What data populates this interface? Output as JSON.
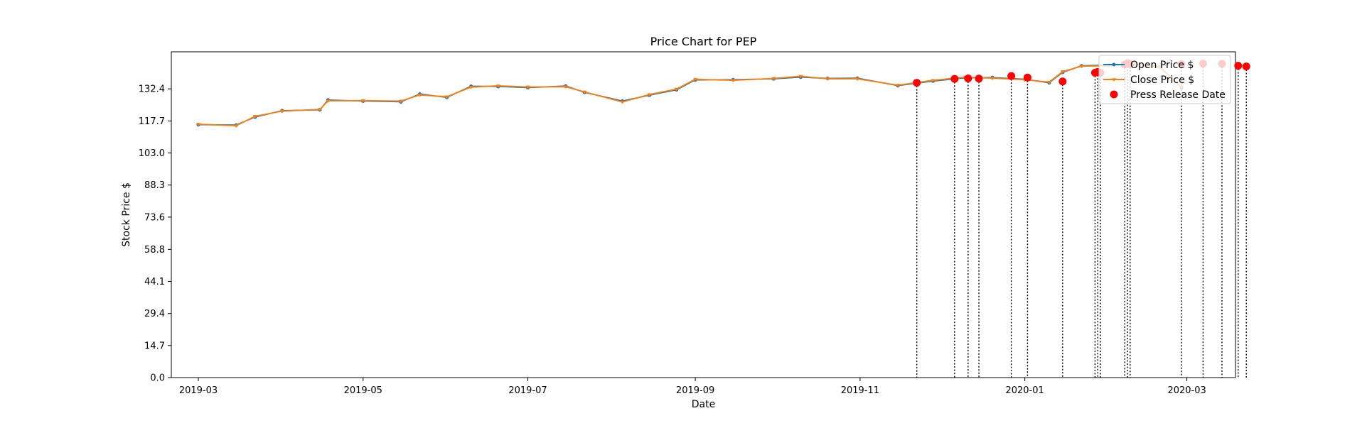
{
  "chart_data": {
    "type": "line",
    "title": "Price Chart for PEP",
    "xlabel": "Date",
    "ylabel": "Stock Price $",
    "xlim": [
      "2019-02-19",
      "2020-03-19"
    ],
    "ylim": [
      0,
      149.4
    ],
    "y_ticks": [
      "0.0",
      "14.7",
      "29.4",
      "44.1",
      "58.8",
      "73.6",
      "88.3",
      "103.0",
      "117.7",
      "132.4"
    ],
    "x_ticks": [
      {
        "date": "2019-03-01",
        "label": "2019-03"
      },
      {
        "date": "2019-05-01",
        "label": "2019-05"
      },
      {
        "date": "2019-07-01",
        "label": "2019-07"
      },
      {
        "date": "2019-09-01",
        "label": "2019-09"
      },
      {
        "date": "2019-11-01",
        "label": "2019-11"
      },
      {
        "date": "2020-01-01",
        "label": "2020-01"
      },
      {
        "date": "2020-03-01",
        "label": "2020-03"
      }
    ],
    "legend_position": "top-right",
    "colors": {
      "open": "#1f77b4",
      "close": "#ff7f0e",
      "press": "#ff0000"
    },
    "series": [
      {
        "name": "Open Price $",
        "points": [
          [
            "2019-03-01",
            116.0
          ],
          [
            "2019-03-15",
            115.8
          ],
          [
            "2019-03-22",
            119.5
          ],
          [
            "2019-04-01",
            122.4
          ],
          [
            "2019-04-15",
            122.8
          ],
          [
            "2019-04-18",
            127.3
          ],
          [
            "2019-05-01",
            126.8
          ],
          [
            "2019-05-15",
            126.5
          ],
          [
            "2019-05-22",
            130.0
          ],
          [
            "2019-06-01",
            128.5
          ],
          [
            "2019-06-10",
            133.6
          ],
          [
            "2019-06-20",
            133.5
          ],
          [
            "2019-07-01",
            133.0
          ],
          [
            "2019-07-15",
            133.7
          ],
          [
            "2019-07-22",
            130.8
          ],
          [
            "2019-08-05",
            126.8
          ],
          [
            "2019-08-15",
            129.5
          ],
          [
            "2019-08-25",
            132.0
          ],
          [
            "2019-09-01",
            136.5
          ],
          [
            "2019-09-15",
            136.6
          ],
          [
            "2019-09-30",
            137.0
          ],
          [
            "2019-10-10",
            137.8
          ],
          [
            "2019-10-20",
            137.2
          ],
          [
            "2019-10-31",
            137.3
          ],
          [
            "2019-11-15",
            133.9
          ],
          [
            "2019-11-28",
            136.0
          ],
          [
            "2019-12-10",
            137.5
          ],
          [
            "2019-12-20",
            137.6
          ],
          [
            "2020-01-01",
            136.8
          ],
          [
            "2020-01-10",
            135.2
          ],
          [
            "2020-01-15",
            140.0
          ],
          [
            "2020-01-22",
            143.0
          ],
          [
            "2020-02-01",
            143.3
          ],
          [
            "2020-02-10",
            143.8
          ],
          [
            "2020-02-20",
            142.6
          ],
          [
            "2020-02-28",
            133.0
          ]
        ]
      },
      {
        "name": "Close Price $",
        "points": [
          [
            "2019-03-01",
            116.2
          ],
          [
            "2019-03-15",
            115.5
          ],
          [
            "2019-03-22",
            119.8
          ],
          [
            "2019-04-01",
            122.2
          ],
          [
            "2019-04-15",
            123.0
          ],
          [
            "2019-04-18",
            126.9
          ],
          [
            "2019-05-01",
            127.0
          ],
          [
            "2019-05-15",
            126.8
          ],
          [
            "2019-05-22",
            129.6
          ],
          [
            "2019-06-01",
            128.8
          ],
          [
            "2019-06-10",
            133.2
          ],
          [
            "2019-06-20",
            133.8
          ],
          [
            "2019-07-01",
            133.3
          ],
          [
            "2019-07-15",
            133.4
          ],
          [
            "2019-07-22",
            131.0
          ],
          [
            "2019-08-05",
            126.4
          ],
          [
            "2019-08-15",
            129.8
          ],
          [
            "2019-08-25",
            132.3
          ],
          [
            "2019-09-01",
            136.8
          ],
          [
            "2019-09-15",
            136.3
          ],
          [
            "2019-09-30",
            137.2
          ],
          [
            "2019-10-10",
            138.2
          ],
          [
            "2019-10-20",
            137.0
          ],
          [
            "2019-10-31",
            137.0
          ],
          [
            "2019-11-15",
            134.1
          ],
          [
            "2019-11-28",
            136.3
          ],
          [
            "2019-12-10",
            137.8
          ],
          [
            "2019-12-20",
            137.3
          ],
          [
            "2020-01-01",
            136.6
          ],
          [
            "2020-01-10",
            135.5
          ],
          [
            "2020-01-15",
            140.3
          ],
          [
            "2020-01-22",
            142.8
          ],
          [
            "2020-02-01",
            143.0
          ],
          [
            "2020-02-10",
            144.0
          ],
          [
            "2020-02-20",
            142.2
          ],
          [
            "2020-02-28",
            133.4
          ]
        ]
      }
    ],
    "press_release": {
      "name": "Press Release Date",
      "points": [
        [
          "2019-11-22",
          135.2
        ],
        [
          "2019-12-06",
          137.0
        ],
        [
          "2019-12-11",
          137.2
        ],
        [
          "2019-12-15",
          137.1
        ],
        [
          "2019-12-27",
          138.3
        ],
        [
          "2020-01-02",
          137.6
        ],
        [
          "2020-01-15",
          135.8
        ],
        [
          "2020-01-27",
          139.8
        ],
        [
          "2020-01-28",
          140.2
        ],
        [
          "2020-01-29",
          139.8
        ],
        [
          "2020-02-07",
          143.6
        ],
        [
          "2020-02-08",
          144.2
        ],
        [
          "2020-02-09",
          143.8
        ],
        [
          "2020-02-28",
          143.8
        ],
        [
          "2020-03-07",
          144.0
        ],
        [
          "2020-03-14",
          143.9
        ],
        [
          "2020-03-20",
          143.0
        ],
        [
          "2020-03-23",
          142.7
        ]
      ]
    }
  }
}
